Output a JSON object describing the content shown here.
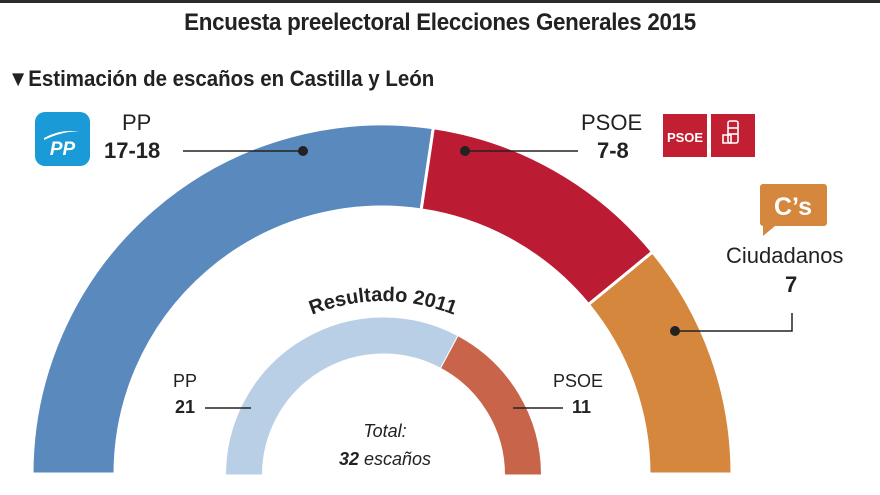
{
  "title": "Encuesta preelectoral Elecciones Generales 2015",
  "subtitle_marker": "▼",
  "subtitle": "Estimación de escaños en Castilla y León",
  "chart_data": [
    {
      "type": "pie",
      "variant": "half-donut",
      "title": "Estimación de escaños en Castilla y León",
      "unit": "escaños",
      "total_seats": 32,
      "series": [
        {
          "name": "PP",
          "label": "PP",
          "value_label": "17-18",
          "value": 17.5,
          "color": "#5a89bd"
        },
        {
          "name": "PSOE",
          "label": "PSOE",
          "value_label": "7-8",
          "value": 7.5,
          "color": "#bb1b33"
        },
        {
          "name": "Ciudadanos",
          "label": "Ciudadanos",
          "value_label": "7",
          "value": 7,
          "color": "#d5873e"
        }
      ]
    },
    {
      "type": "pie",
      "variant": "half-donut",
      "title": "Resultado 2011",
      "unit": "escaños",
      "total_seats": 32,
      "total_label": "Total:",
      "total_value": "32",
      "total_unit": "escaños",
      "series": [
        {
          "name": "PP",
          "label": "PP",
          "value_label": "21",
          "value": 21,
          "color": "#b9cfe6"
        },
        {
          "name": "PSOE",
          "label": "PSOE",
          "value_label": "11",
          "value": 11,
          "color": "#c8644a"
        }
      ]
    }
  ],
  "logos": {
    "pp": {
      "text": "PP",
      "color": "#1a9ad6"
    },
    "psoe": {
      "text": "PSOE",
      "color": "#c21f32"
    },
    "cs": {
      "text": "C’s",
      "color": "#d5873e"
    }
  }
}
